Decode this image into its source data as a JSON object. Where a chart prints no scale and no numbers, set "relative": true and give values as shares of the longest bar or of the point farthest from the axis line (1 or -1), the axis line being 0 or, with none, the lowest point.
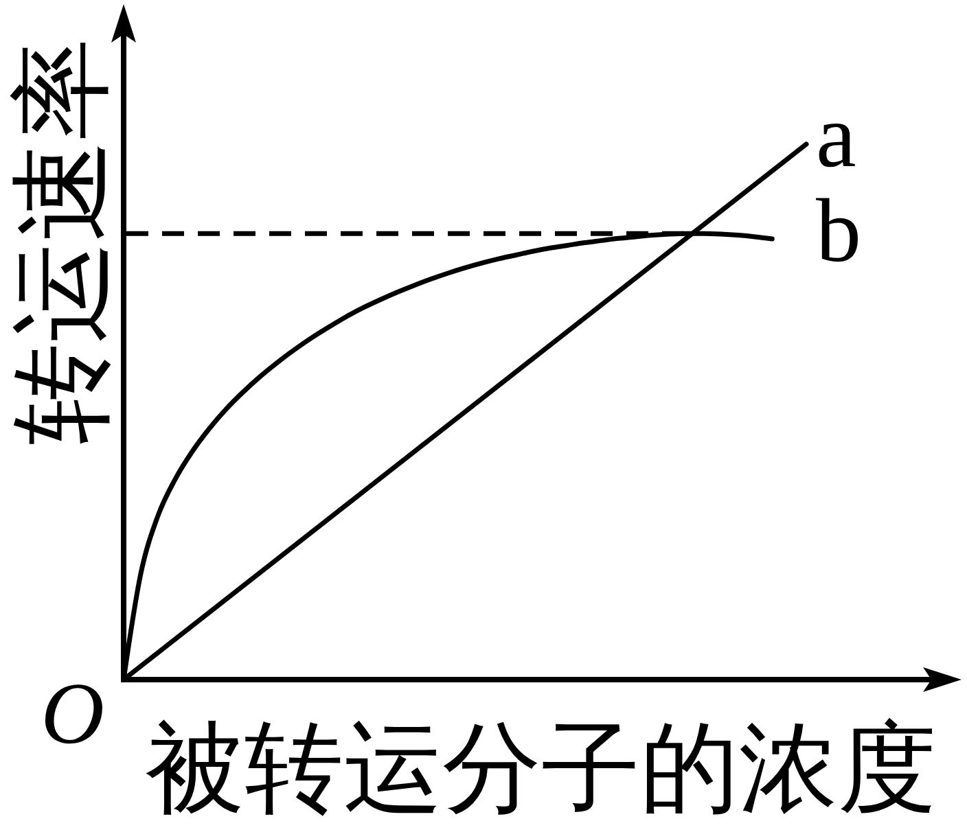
{
  "chart_data": {
    "type": "line",
    "xlabel": "被转运分子的浓度",
    "ylabel": "转运速率",
    "annotations": [
      "O"
    ],
    "relative": true,
    "categories": [
      null,
      null,
      null,
      null,
      null,
      null,
      null,
      null,
      null,
      null,
      null,
      null,
      null,
      null,
      null,
      null,
      null,
      null,
      null,
      null,
      null,
      null,
      null,
      null,
      null,
      null,
      null,
      null,
      null,
      null,
      null,
      null,
      null,
      null,
      null,
      null,
      null,
      null,
      null,
      null,
      null
    ],
    "series": [
      {
        "name": "a",
        "color": "#000000",
        "values": [
          0,
          0.025,
          0.05,
          0.075,
          0.1,
          0.125,
          0.15,
          0.175,
          0.2,
          0.225,
          0.25,
          0.275,
          0.3,
          0.325,
          0.35,
          0.375,
          0.4,
          0.425,
          0.45,
          0.475,
          0.5,
          0.525,
          0.55,
          0.575,
          0.6,
          0.625,
          0.65,
          0.675,
          0.7,
          0.725,
          0.75,
          0.775,
          0.8,
          0.825,
          0.85,
          0.875,
          0.9,
          0.925,
          0.95,
          0.975,
          1
        ]
      },
      {
        "name": "b",
        "color": "#000000",
        "values": [
          0,
          0.197,
          0.305,
          0.373,
          0.425,
          0.468,
          0.505,
          0.537,
          0.566,
          0.592,
          0.616,
          0.638,
          0.658,
          0.677,
          0.694,
          0.709,
          0.723,
          0.736,
          0.748,
          0.759,
          0.769,
          0.778,
          0.786,
          0.793,
          0.8,
          0.806,
          0.811,
          0.816,
          0.82,
          0.824,
          0.827,
          0.83,
          0.832,
          0.833,
          0.833,
          0.832,
          0.83,
          0.827,
          0.823,
          null,
          null
        ]
      }
    ],
    "ref_lines": [
      {
        "axis": "y",
        "value": 0.833,
        "color": "#000000",
        "line_style": "dashed"
      }
    ]
  }
}
